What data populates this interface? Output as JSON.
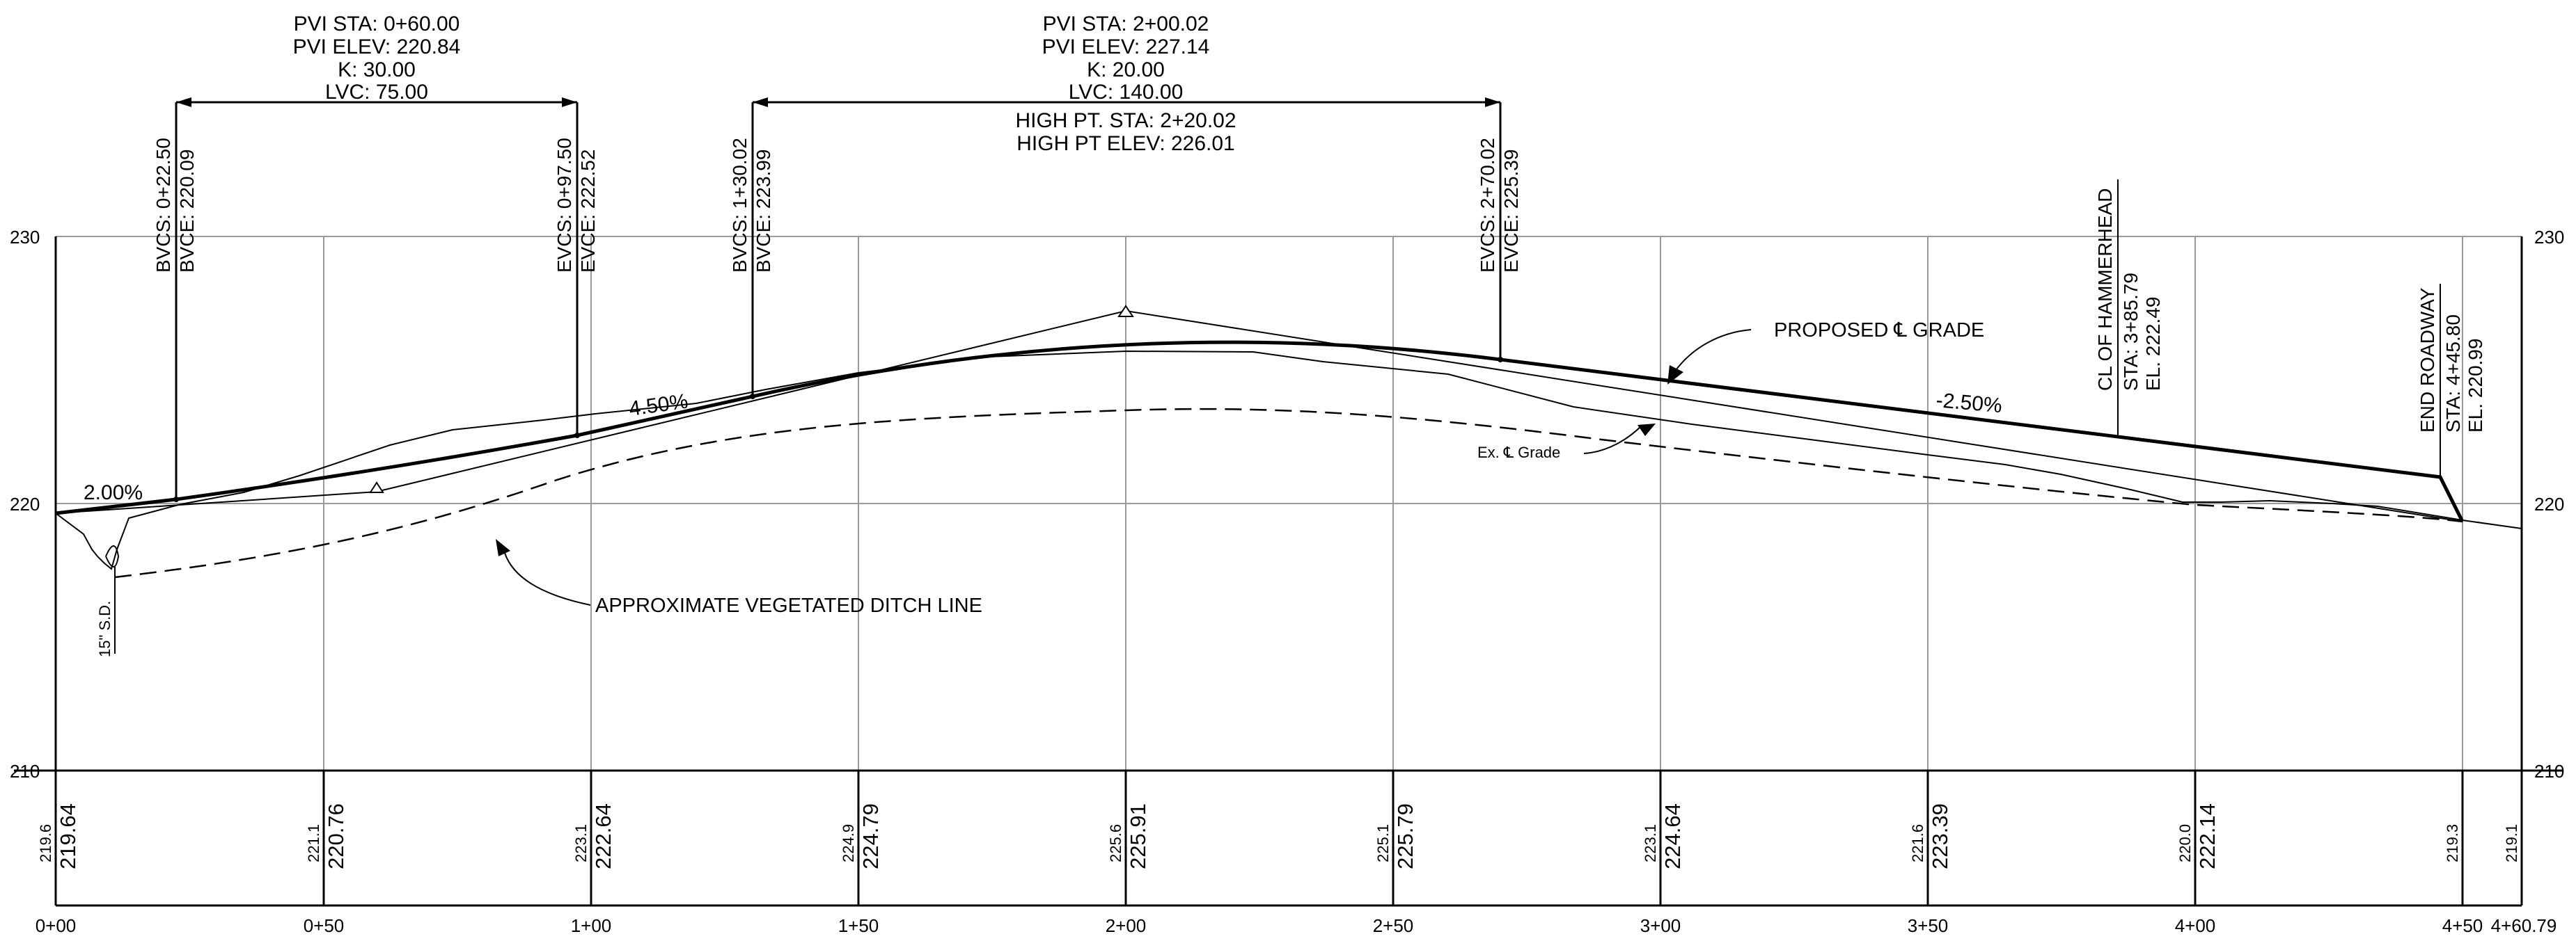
{
  "profile": {
    "station_ticks": [
      "0+00",
      "0+50",
      "1+00",
      "1+50",
      "2+00",
      "2+50",
      "3+00",
      "3+50",
      "4+00",
      "4+50",
      "4+60.79"
    ],
    "elev_labels": [
      "230",
      "220",
      "210"
    ],
    "table": [
      {
        "ex": "219.6",
        "prop": "219.64"
      },
      {
        "ex": "221.1",
        "prop": "220.76"
      },
      {
        "ex": "223.1",
        "prop": "222.64"
      },
      {
        "ex": "224.9",
        "prop": "224.79"
      },
      {
        "ex": "225.6",
        "prop": "225.91"
      },
      {
        "ex": "225.1",
        "prop": "225.79"
      },
      {
        "ex": "223.1",
        "prop": "224.64"
      },
      {
        "ex": "221.6",
        "prop": "223.39"
      },
      {
        "ex": "220.0",
        "prop": "222.14"
      },
      {
        "ex": "219.3",
        "prop": ""
      },
      {
        "ex": "219.1",
        "prop": ""
      }
    ],
    "vc1": {
      "pvi_sta": "PVI STA:  0+60.00",
      "pvi_elev": "PVI ELEV:  220.84",
      "k": "K:  30.00",
      "lvc": "LVC:  75.00",
      "bvcs": "BVCS:  0+22.50",
      "bvce": "BVCE:  220.09",
      "evcs": "EVCS:  0+97.50",
      "evce": "EVCE:  222.52"
    },
    "vc2": {
      "pvi_sta": "PVI STA:  2+00.02",
      "pvi_elev": "PVI ELEV:  227.14",
      "k": "K:  20.00",
      "lvc": "LVC:  140.00",
      "high_sta": "HIGH PT. STA:  2+20.02",
      "high_elev": "HIGH PT ELEV:  226.01",
      "bvcs": "BVCS:  1+30.02",
      "bvce": "BVCE:  223.99",
      "evcs": "EVCS:  2+70.02",
      "evce": "EVCE:  225.39"
    },
    "grades": {
      "g1": "2.00%",
      "g2": "4.50%",
      "g3": "-2.50%"
    },
    "hammerhead": {
      "title": "CL OF HAMMERHEAD",
      "sta": "STA:  3+85.79",
      "el": "EL.  222.49"
    },
    "end_road": {
      "title": "END ROADWAY",
      "sta": "STA:  4+45.80",
      "el": "EL.  220.99"
    },
    "callouts": {
      "proposed": "PROPOSED ℄ GRADE",
      "existing": "Ex. ℄ Grade",
      "ditch": "APPROXIMATE VEGETATED DITCH LINE",
      "pipe": "15\" S.D."
    }
  }
}
